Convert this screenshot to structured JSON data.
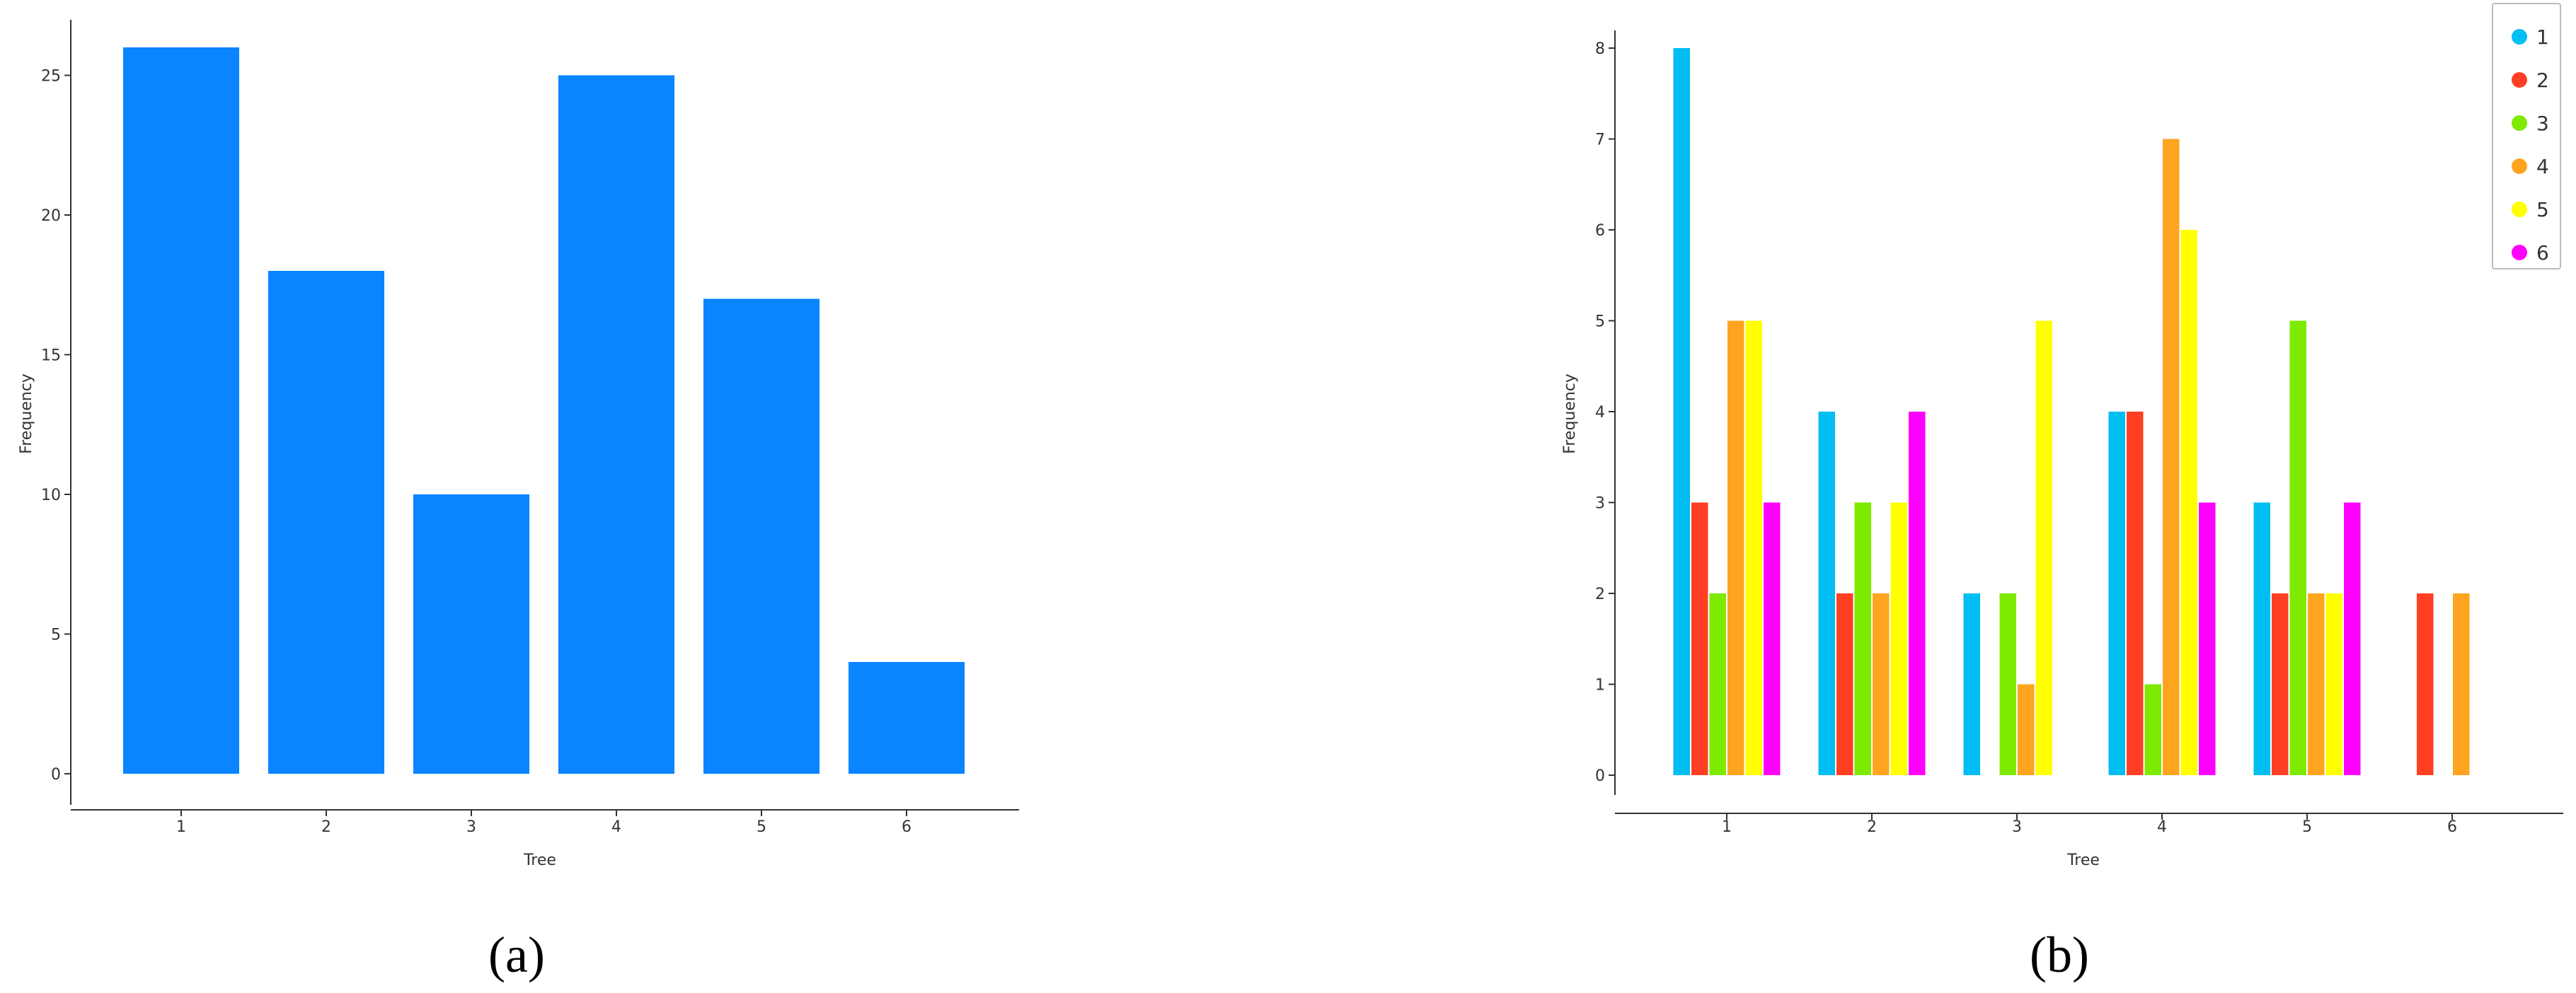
{
  "panel_labels": [
    "(a)",
    "(b)"
  ],
  "chart_data": [
    {
      "type": "bar",
      "panel": "(a)",
      "categories": [
        "1",
        "2",
        "3",
        "4",
        "5",
        "6"
      ],
      "values": [
        26,
        18,
        10,
        25,
        17,
        4
      ],
      "xlabel": "Tree",
      "ylabel": "Frequency",
      "yticks": [
        "0",
        "5",
        "10",
        "15",
        "20",
        "25"
      ],
      "ylim": [
        0,
        26.5
      ],
      "grid": false,
      "color": "#0a84ff"
    },
    {
      "type": "bar",
      "panel": "(b)",
      "categories": [
        "1",
        "2",
        "3",
        "4",
        "5",
        "6"
      ],
      "series": [
        {
          "name": "1",
          "color": "#00bdf2",
          "values": [
            8,
            4,
            2,
            4,
            3,
            0
          ]
        },
        {
          "name": "2",
          "color": "#ff3f24",
          "values": [
            3,
            2,
            0,
            4,
            2,
            2
          ]
        },
        {
          "name": "3",
          "color": "#7dea00",
          "values": [
            2,
            3,
            2,
            1,
            5,
            0
          ]
        },
        {
          "name": "4",
          "color": "#ffa41f",
          "values": [
            5,
            2,
            1,
            7,
            2,
            2
          ]
        },
        {
          "name": "5",
          "color": "#ffff00",
          "values": [
            5,
            3,
            5,
            6,
            2,
            0
          ]
        },
        {
          "name": "6",
          "color": "#ff00ff",
          "values": [
            3,
            4,
            0,
            3,
            3,
            0
          ]
        }
      ],
      "xlabel": "Tree",
      "ylabel": "Frequency",
      "yticks": [
        "0",
        "1",
        "2",
        "3",
        "4",
        "5",
        "6",
        "7",
        "8"
      ],
      "ylim": [
        0,
        8.2
      ],
      "grid": false,
      "legend": "top-right"
    }
  ]
}
